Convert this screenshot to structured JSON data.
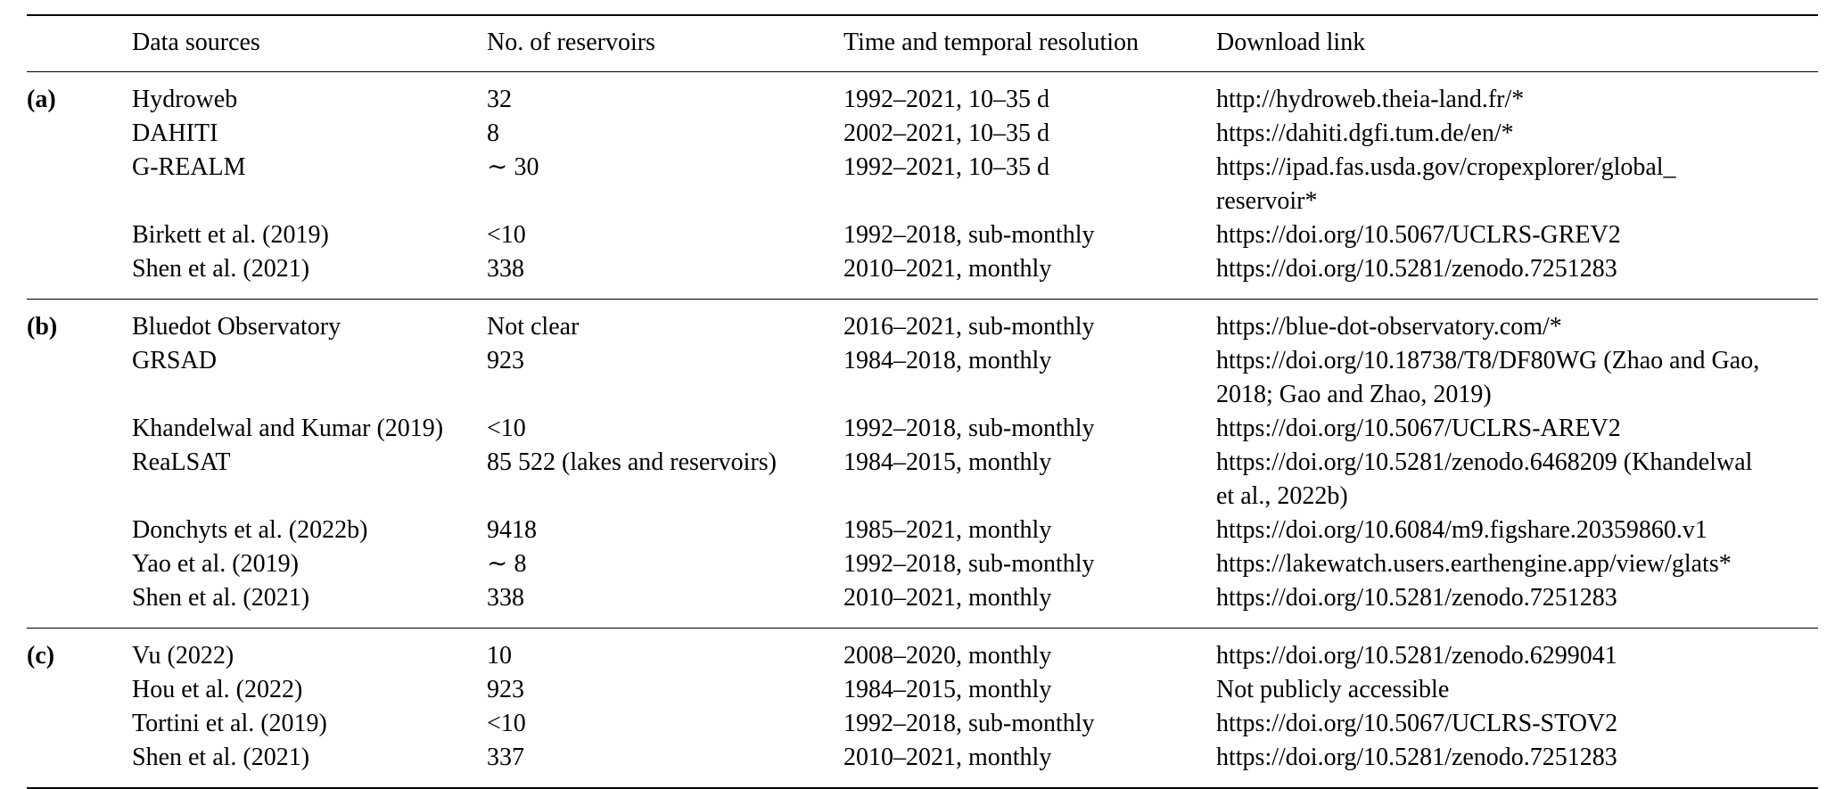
{
  "table": {
    "headers": {
      "group": "",
      "source": "Data sources",
      "count": "No. of reservoirs",
      "time": "Time and temporal resolution",
      "link": "Download link"
    },
    "groups": [
      {
        "label": "(a)",
        "rows": [
          {
            "source": "Hydroweb",
            "count": "32",
            "time": "1992–2021, 10–35 d",
            "link": "http://hydroweb.theia-land.fr/*"
          },
          {
            "source": "DAHITI",
            "count": "8",
            "time": "2002–2021, 10–35 d",
            "link": "https://dahiti.dgfi.tum.de/en/*"
          },
          {
            "source": "G-REALM",
            "count": "∼ 30",
            "time": "1992–2021, 10–35 d",
            "link": "https://ipad.fas.usda.gov/cropexplorer/global_\nreservoir*"
          },
          {
            "source": "Birkett et al. (2019)",
            "count": "<10",
            "time": "1992–2018, sub-monthly",
            "link": "https://doi.org/10.5067/UCLRS-GREV2"
          },
          {
            "source": "Shen et al. (2021)",
            "count": "338",
            "time": "2010–2021, monthly",
            "link": "https://doi.org/10.5281/zenodo.7251283"
          }
        ]
      },
      {
        "label": "(b)",
        "rows": [
          {
            "source": "Bluedot Observatory",
            "count": "Not clear",
            "time": "2016–2021, sub-monthly",
            "link": "https://blue-dot-observatory.com/*"
          },
          {
            "source": "GRSAD",
            "count": "923",
            "time": "1984–2018, monthly",
            "link": "https://doi.org/10.18738/T8/DF80WG (Zhao and Gao,\n2018; Gao and Zhao, 2019)"
          },
          {
            "source": "Khandelwal and Kumar (2019)",
            "count": "<10",
            "time": "1992–2018, sub-monthly",
            "link": "https://doi.org/10.5067/UCLRS-AREV2"
          },
          {
            "source": "ReaLSAT",
            "count": "85 522 (lakes and reservoirs)",
            "time": "1984–2015, monthly",
            "link": "https://doi.org/10.5281/zenodo.6468209 (Khandelwal\net al., 2022b)"
          },
          {
            "source": "Donchyts et al. (2022b)",
            "count": "9418",
            "time": "1985–2021, monthly",
            "link": "https://doi.org/10.6084/m9.figshare.20359860.v1"
          },
          {
            "source": "Yao et al. (2019)",
            "count": "∼ 8",
            "time": "1992–2018, sub-monthly",
            "link": "https://lakewatch.users.earthengine.app/view/glats*"
          },
          {
            "source": "Shen et al. (2021)",
            "count": "338",
            "time": "2010–2021, monthly",
            "link": "https://doi.org/10.5281/zenodo.7251283"
          }
        ]
      },
      {
        "label": "(c)",
        "rows": [
          {
            "source": "Vu (2022)",
            "count": "10",
            "time": "2008–2020, monthly",
            "link": "https://doi.org/10.5281/zenodo.6299041"
          },
          {
            "source": "Hou et al. (2022)",
            "count": "923",
            "time": "1984–2015, monthly",
            "link": "Not publicly accessible"
          },
          {
            "source": "Tortini et al. (2019)",
            "count": "<10",
            "time": "1992–2018, sub-monthly",
            "link": "https://doi.org/10.5067/UCLRS-STOV2"
          },
          {
            "source": "Shen et al. (2021)",
            "count": "337",
            "time": "2010–2021, monthly",
            "link": "https://doi.org/10.5281/zenodo.7251283"
          }
        ]
      }
    ]
  }
}
